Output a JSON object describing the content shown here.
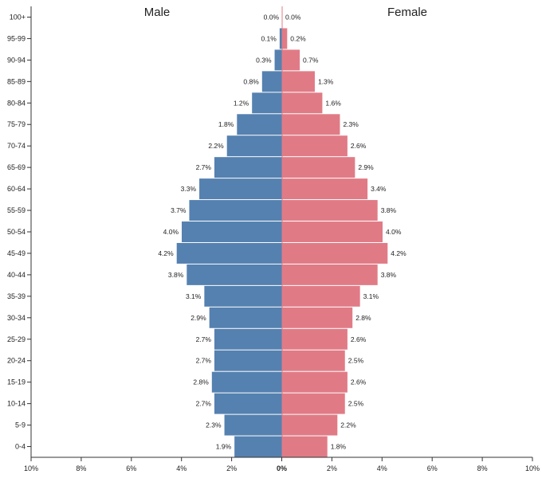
{
  "chart_data": {
    "type": "bar",
    "orientation": "horizontal-diverging",
    "left_header": "Male",
    "right_header": "Female",
    "categories": [
      "100+",
      "95-99",
      "90-94",
      "85-89",
      "80-84",
      "75-79",
      "70-74",
      "65-69",
      "60-64",
      "55-59",
      "50-54",
      "45-49",
      "40-44",
      "35-39",
      "30-34",
      "25-29",
      "20-24",
      "15-19",
      "10-14",
      "5-9",
      "0-4"
    ],
    "series": [
      {
        "name": "Male",
        "color": "#5581b0",
        "values": [
          0.0,
          0.1,
          0.3,
          0.8,
          1.2,
          1.8,
          2.2,
          2.7,
          3.3,
          3.7,
          4.0,
          4.2,
          3.8,
          3.1,
          2.9,
          2.7,
          2.7,
          2.8,
          2.7,
          2.3,
          1.9
        ],
        "labels": [
          "0.0%",
          "0.1%",
          "0.3%",
          "0.8%",
          "1.2%",
          "1.8%",
          "2.2%",
          "2.7%",
          "3.3%",
          "3.7%",
          "4.0%",
          "4.2%",
          "3.8%",
          "3.1%",
          "2.9%",
          "2.7%",
          "2.7%",
          "2.8%",
          "2.7%",
          "2.3%",
          "1.9%"
        ]
      },
      {
        "name": "Female",
        "color": "#e07b86",
        "values": [
          0.0,
          0.2,
          0.7,
          1.3,
          1.6,
          2.3,
          2.6,
          2.9,
          3.4,
          3.8,
          4.0,
          4.2,
          3.8,
          3.1,
          2.8,
          2.6,
          2.5,
          2.6,
          2.5,
          2.2,
          1.8
        ],
        "labels": [
          "0.0%",
          "0.2%",
          "0.7%",
          "1.3%",
          "1.6%",
          "2.3%",
          "2.6%",
          "2.9%",
          "3.4%",
          "3.8%",
          "4.0%",
          "4.2%",
          "3.8%",
          "3.1%",
          "2.8%",
          "2.6%",
          "2.5%",
          "2.6%",
          "2.5%",
          "2.2%",
          "1.8%"
        ]
      }
    ],
    "x_ticks": [
      "10%",
      "8%",
      "6%",
      "4%",
      "2%",
      "0%",
      "2%",
      "4%",
      "6%",
      "8%",
      "10%"
    ],
    "xlim": [
      -10,
      10
    ],
    "grid": false,
    "legend": "none"
  }
}
